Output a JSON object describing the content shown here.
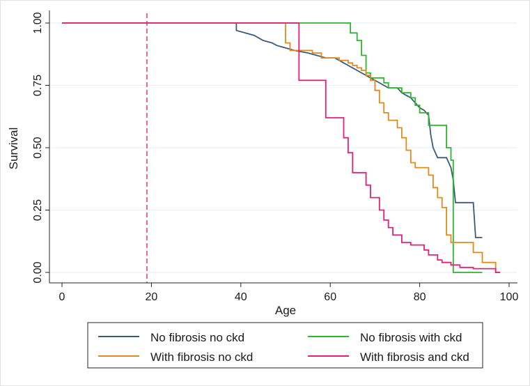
{
  "chart_data": {
    "type": "line",
    "step": true,
    "title": "",
    "xlabel": "Age",
    "ylabel": "Survival",
    "xlim": [
      0,
      100
    ],
    "ylim": [
      0,
      1
    ],
    "xticks": [
      0,
      20,
      40,
      60,
      80,
      100
    ],
    "yticks": [
      0,
      0.25,
      0.5,
      0.75,
      1
    ],
    "xtick_labels": [
      "0",
      "20",
      "40",
      "60",
      "80",
      "100"
    ],
    "ytick_labels": [
      "0.00",
      "0.25",
      "0.50",
      "0.75",
      "1.00"
    ],
    "gridlines": "horizontal",
    "reference_line": {
      "x": 19,
      "style": "dashed",
      "color": "#d6204f"
    },
    "legend_position": "bottom",
    "series": [
      {
        "name": "No fibrosis no ckd",
        "color": "#3a5a7c",
        "points": [
          [
            0,
            1
          ],
          [
            39,
            1
          ],
          [
            39,
            0.97
          ],
          [
            41,
            0.96
          ],
          [
            43,
            0.95
          ],
          [
            45,
            0.93
          ],
          [
            47,
            0.92
          ],
          [
            48,
            0.91
          ],
          [
            50,
            0.9
          ],
          [
            52,
            0.89
          ],
          [
            55,
            0.88
          ],
          [
            57,
            0.87
          ],
          [
            59,
            0.86
          ],
          [
            61,
            0.86
          ],
          [
            62,
            0.85
          ],
          [
            63,
            0.84
          ],
          [
            64,
            0.83
          ],
          [
            65,
            0.82
          ],
          [
            66,
            0.81
          ],
          [
            67,
            0.8
          ],
          [
            68,
            0.79
          ],
          [
            69,
            0.78
          ],
          [
            71,
            0.76
          ],
          [
            73,
            0.74
          ],
          [
            75,
            0.74
          ],
          [
            76,
            0.72
          ],
          [
            77,
            0.71
          ],
          [
            78,
            0.7
          ],
          [
            79,
            0.68
          ],
          [
            80,
            0.66
          ],
          [
            81,
            0.65
          ],
          [
            82,
            0.63
          ],
          [
            82.5,
            0.55
          ],
          [
            83,
            0.5
          ],
          [
            84,
            0.46
          ],
          [
            86,
            0.46
          ],
          [
            86.5,
            0.44
          ],
          [
            87,
            0.42
          ],
          [
            87.5,
            0.37
          ],
          [
            88,
            0.28
          ],
          [
            92,
            0.28
          ],
          [
            92.5,
            0.14
          ],
          [
            94,
            0.14
          ]
        ]
      },
      {
        "name": "No fibrosis with ckd",
        "color": "#2db52d",
        "points": [
          [
            0,
            1
          ],
          [
            64.5,
            1
          ],
          [
            64.5,
            0.96
          ],
          [
            66,
            0.96
          ],
          [
            66,
            0.93
          ],
          [
            67,
            0.93
          ],
          [
            67,
            0.87
          ],
          [
            68,
            0.87
          ],
          [
            68,
            0.8
          ],
          [
            69,
            0.8
          ],
          [
            69,
            0.78
          ],
          [
            72,
            0.78
          ],
          [
            72,
            0.76
          ],
          [
            73,
            0.76
          ],
          [
            73,
            0.74
          ],
          [
            76,
            0.74
          ],
          [
            76,
            0.72
          ],
          [
            78,
            0.72
          ],
          [
            78,
            0.7
          ],
          [
            79,
            0.7
          ],
          [
            79,
            0.67
          ],
          [
            80,
            0.67
          ],
          [
            80,
            0.64
          ],
          [
            82,
            0.64
          ],
          [
            82,
            0.59
          ],
          [
            86,
            0.59
          ],
          [
            86,
            0.5
          ],
          [
            87,
            0.5
          ],
          [
            87,
            0.45
          ],
          [
            87.5,
            0.45
          ],
          [
            87.5,
            0
          ],
          [
            94,
            0
          ]
        ]
      },
      {
        "name": "With fibrosis no ckd",
        "color": "#e08a1e",
        "points": [
          [
            0,
            1
          ],
          [
            50,
            1
          ],
          [
            50,
            0.92
          ],
          [
            51,
            0.92
          ],
          [
            51,
            0.89
          ],
          [
            56,
            0.89
          ],
          [
            56,
            0.88
          ],
          [
            58,
            0.88
          ],
          [
            58,
            0.86
          ],
          [
            62,
            0.86
          ],
          [
            62,
            0.85
          ],
          [
            64,
            0.85
          ],
          [
            64,
            0.84
          ],
          [
            65,
            0.84
          ],
          [
            65,
            0.83
          ],
          [
            66,
            0.83
          ],
          [
            66,
            0.82
          ],
          [
            67,
            0.82
          ],
          [
            67,
            0.81
          ],
          [
            68,
            0.81
          ],
          [
            68,
            0.79
          ],
          [
            69,
            0.79
          ],
          [
            69,
            0.77
          ],
          [
            70,
            0.77
          ],
          [
            70,
            0.73
          ],
          [
            71,
            0.73
          ],
          [
            71,
            0.68
          ],
          [
            72,
            0.68
          ],
          [
            72,
            0.64
          ],
          [
            73,
            0.64
          ],
          [
            73,
            0.61
          ],
          [
            75,
            0.61
          ],
          [
            75,
            0.58
          ],
          [
            76,
            0.58
          ],
          [
            76,
            0.54
          ],
          [
            77,
            0.54
          ],
          [
            77,
            0.49
          ],
          [
            78,
            0.49
          ],
          [
            78,
            0.44
          ],
          [
            79,
            0.44
          ],
          [
            79,
            0.42
          ],
          [
            82,
            0.42
          ],
          [
            82,
            0.39
          ],
          [
            83,
            0.39
          ],
          [
            83,
            0.34
          ],
          [
            84,
            0.34
          ],
          [
            84,
            0.3
          ],
          [
            85,
            0.3
          ],
          [
            85,
            0.26
          ],
          [
            86,
            0.26
          ],
          [
            86,
            0.15
          ],
          [
            87,
            0.15
          ],
          [
            87,
            0.12
          ],
          [
            92,
            0.12
          ],
          [
            92,
            0.08
          ],
          [
            94,
            0.08
          ],
          [
            94,
            0.04
          ],
          [
            97,
            0.04
          ],
          [
            97,
            0
          ],
          [
            98,
            0
          ]
        ]
      },
      {
        "name": "With fibrosis and ckd",
        "color": "#e2207a",
        "points": [
          [
            0,
            1
          ],
          [
            53,
            1
          ],
          [
            53,
            0.77
          ],
          [
            59,
            0.77
          ],
          [
            59,
            0.62
          ],
          [
            63,
            0.62
          ],
          [
            63,
            0.54
          ],
          [
            64,
            0.54
          ],
          [
            64,
            0.48
          ],
          [
            65,
            0.48
          ],
          [
            65,
            0.4
          ],
          [
            68,
            0.4
          ],
          [
            68,
            0.35
          ],
          [
            69,
            0.35
          ],
          [
            69,
            0.3
          ],
          [
            71,
            0.3
          ],
          [
            71,
            0.25
          ],
          [
            72,
            0.25
          ],
          [
            72,
            0.21
          ],
          [
            73,
            0.21
          ],
          [
            73,
            0.18
          ],
          [
            74,
            0.18
          ],
          [
            74,
            0.15
          ],
          [
            76,
            0.15
          ],
          [
            76,
            0.12
          ],
          [
            78,
            0.12
          ],
          [
            78,
            0.11
          ],
          [
            81,
            0.11
          ],
          [
            81,
            0.09
          ],
          [
            82,
            0.09
          ],
          [
            82,
            0.07
          ],
          [
            84,
            0.07
          ],
          [
            84,
            0.05
          ],
          [
            85,
            0.05
          ],
          [
            85,
            0.04
          ],
          [
            87,
            0.04
          ],
          [
            87,
            0.03
          ],
          [
            89,
            0.03
          ],
          [
            89,
            0.02
          ],
          [
            92,
            0.02
          ],
          [
            92,
            0.015
          ],
          [
            97,
            0.015
          ],
          [
            97,
            0
          ],
          [
            98,
            0
          ]
        ]
      }
    ]
  }
}
